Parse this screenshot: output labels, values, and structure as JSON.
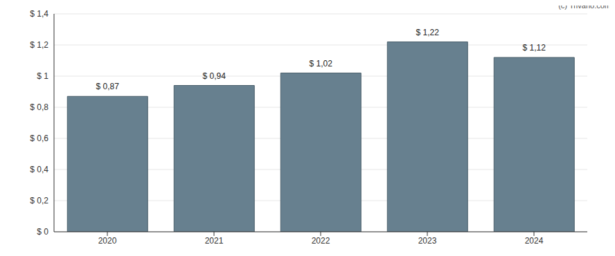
{
  "chart_data": {
    "type": "bar",
    "categories": [
      "2020",
      "2021",
      "2022",
      "2023",
      "2024"
    ],
    "values": [
      0.87,
      0.94,
      1.02,
      1.22,
      1.12
    ],
    "value_labels": [
      "$ 0,87",
      "$ 0,94",
      "$ 1,02",
      "$ 1,22",
      "$ 1,12"
    ],
    "color": "#67808f",
    "ylim": [
      0,
      1.4
    ],
    "yticks": [
      {
        "value": 0,
        "label": "$ 0"
      },
      {
        "value": 0.2,
        "label": "$ 0,2"
      },
      {
        "value": 0.4,
        "label": "$ 0,4"
      },
      {
        "value": 0.6,
        "label": "$ 0,6"
      },
      {
        "value": 0.8,
        "label": "$ 0,8"
      },
      {
        "value": 1,
        "label": "$ 1"
      },
      {
        "value": 1.2,
        "label": "$ 1,2"
      },
      {
        "value": 1.4,
        "label": "$ 1,4"
      }
    ],
    "grid": true,
    "data_labels": true,
    "annotations": [
      "(c) Trivano.com"
    ]
  }
}
